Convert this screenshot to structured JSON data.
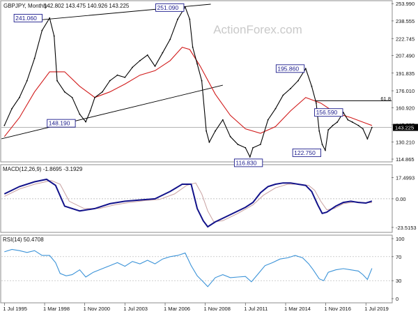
{
  "watermark": "ActionForex.com",
  "colors": {
    "price": "#000000",
    "ma": "#d11a1a",
    "macd": "#12128a",
    "signal": "#c8a0a0",
    "rsi": "#3b93d8",
    "callout_border": "#1a1a8c",
    "callout_bg": "#ffffff",
    "current_label_bg": "#000000"
  },
  "chart_data": [
    {
      "type": "line",
      "panel": "price",
      "title": "GBPJPY, Monthly",
      "ohlc_label": "142.802 143.475 140.926 143.225",
      "current_price_label": "143.225",
      "current_price": 143.225,
      "ylim": [
        113.0,
        256.0
      ],
      "y_ticks": [
        "253.990",
        "238.555",
        "222.745",
        "207.490",
        "191.835",
        "176.010",
        "160.920",
        "145.555",
        "130.210",
        "114.865"
      ],
      "y_tick_values": [
        253.99,
        238.555,
        222.745,
        207.49,
        191.835,
        176.01,
        160.92,
        145.555,
        130.21,
        114.865
      ],
      "x_labels": [
        "1 Jul 1995",
        "1 Mar 1998",
        "1 Nov 2000",
        "1 Jul 2003",
        "1 Mar 2006",
        "1 Nov 2008",
        "1 Jul 2011",
        "1 Mar 2014",
        "1 Nov 2016",
        "1 Jul 2019"
      ],
      "x_label_values": [
        1995.5,
        1998.17,
        2000.83,
        2003.5,
        2006.17,
        2008.83,
        2011.5,
        2014.17,
        2016.83,
        2019.5
      ],
      "xlim": [
        1995.3,
        2021.2
      ],
      "fib_label": "61.8",
      "fib_level": 167.1,
      "annotations": [
        {
          "text": "241.060",
          "x": 1998.1,
          "y": 241.06
        },
        {
          "text": "251.090",
          "x": 2007.6,
          "y": 251.09
        },
        {
          "text": "148.190",
          "x": 2000.3,
          "y": 148.19
        },
        {
          "text": "116.830",
          "x": 2011.7,
          "y": 116.83
        },
        {
          "text": "195.860",
          "x": 2015.5,
          "y": 195.86
        },
        {
          "text": "156.590",
          "x": 2016.0,
          "y": 156.59
        },
        {
          "text": "122.750",
          "x": 2016.6,
          "y": 122.75
        }
      ],
      "trendlines": [
        {
          "x": [
            1995.3,
            2010.0
          ],
          "y": [
            133.0,
            181.0
          ]
        },
        {
          "x": [
            1997.9,
            2009.2
          ],
          "y": [
            239.5,
            253.5
          ]
        },
        {
          "x": [
            2016.1,
            2021.2
          ],
          "y": [
            167.1,
            167.1
          ]
        }
      ],
      "series": [
        {
          "name": "",
          "role": "price",
          "x": [
            1995.5,
            1996.0,
            1996.5,
            1997.0,
            1997.5,
            1998.0,
            1998.5,
            1998.8,
            1999.0,
            1999.5,
            2000.0,
            2000.5,
            2000.9,
            2001.2,
            2001.5,
            2002.0,
            2002.5,
            2003.0,
            2003.5,
            2004.0,
            2004.5,
            2005.0,
            2005.5,
            2006.0,
            2006.5,
            2007.0,
            2007.5,
            2007.8,
            2008.0,
            2008.3,
            2008.6,
            2008.9,
            2009.1,
            2009.5,
            2010.0,
            2010.5,
            2011.0,
            2011.5,
            2011.8,
            2012.0,
            2012.5,
            2013.0,
            2013.5,
            2014.0,
            2014.5,
            2015.0,
            2015.5,
            2015.9,
            2016.2,
            2016.4,
            2016.6,
            2016.8,
            2017.0,
            2017.3,
            2017.6,
            2018.0,
            2018.3,
            2018.6,
            2019.0,
            2019.3,
            2019.6,
            2019.9
          ],
          "y": [
            145,
            160,
            170,
            185,
            205,
            230,
            241.06,
            225,
            185,
            175,
            170,
            155,
            148.19,
            158,
            170,
            175,
            185,
            190,
            188,
            197,
            203,
            208,
            198,
            210,
            222,
            240,
            251.09,
            240,
            215,
            200,
            185,
            140,
            130,
            140,
            150,
            135,
            128,
            125,
            116.83,
            125,
            128,
            150,
            160,
            172,
            178,
            185,
            195.86,
            180,
            165,
            140,
            128,
            122.75,
            141,
            145,
            148,
            156.59,
            150,
            148,
            145,
            142,
            133,
            143.225
          ]
        },
        {
          "name": "",
          "role": "moving-average",
          "x": [
            1995.5,
            1996.5,
            1997.5,
            1998.5,
            1999.5,
            2000.5,
            2001.5,
            2002.5,
            2003.5,
            2004.5,
            2005.5,
            2006.5,
            2007.3,
            2007.8,
            2008.5,
            2009.5,
            2010.5,
            2011.5,
            2012.5,
            2013.5,
            2014.5,
            2015.5,
            2016.5,
            2017.5,
            2018.5,
            2019.5,
            2019.9
          ],
          "y": [
            135,
            152,
            175,
            193,
            193,
            180,
            170,
            175,
            182,
            190,
            194,
            203,
            215,
            213,
            198,
            173,
            154,
            142,
            138,
            144,
            158,
            170,
            165,
            156,
            152,
            147,
            145
          ]
        }
      ]
    },
    {
      "type": "line",
      "panel": "macd",
      "title": "MACD(12,26,9) -1.8695 -3.1929",
      "ylim": [
        -27,
        20
      ],
      "y_ticks": [
        "17.4993",
        "0.00",
        "-23.5153"
      ],
      "y_tick_values": [
        17.4993,
        0.0,
        -23.5153
      ],
      "series": [
        {
          "name": "",
          "role": "macd",
          "x": [
            1995.5,
            1996.5,
            1997.5,
            1998.3,
            1998.9,
            1999.5,
            2000.5,
            2001.5,
            2002.5,
            2003.5,
            2004.5,
            2005.5,
            2006.5,
            2007.3,
            2007.9,
            2008.3,
            2008.7,
            2009.0,
            2009.5,
            2010.5,
            2011.5,
            2012.0,
            2012.5,
            2013.0,
            2013.5,
            2014.0,
            2014.5,
            2015.0,
            2015.5,
            2015.9,
            2016.3,
            2016.6,
            2016.9,
            2017.5,
            2018.0,
            2018.5,
            2019.0,
            2019.5,
            2019.9
          ],
          "y": [
            4,
            10,
            14,
            16,
            11,
            -6,
            -10,
            -8,
            -4,
            -2,
            -1,
            0,
            6,
            12,
            12,
            -8,
            -18,
            -23,
            -19,
            -13,
            -7,
            -3,
            5,
            10,
            12,
            13,
            13,
            12,
            11,
            6,
            -5,
            -12,
            -11,
            -6,
            -3,
            -2,
            -3,
            -3.5,
            -1.87
          ]
        },
        {
          "name": "",
          "role": "signal",
          "x": [
            1995.5,
            1996.5,
            1997.5,
            1998.6,
            1999.2,
            1999.8,
            2000.8,
            2001.8,
            2002.8,
            2003.8,
            2004.8,
            2005.8,
            2006.8,
            2007.6,
            2008.2,
            2008.6,
            2009.0,
            2009.4,
            2010.0,
            2011.0,
            2012.0,
            2012.7,
            2013.5,
            2014.3,
            2015.0,
            2015.7,
            2016.1,
            2016.5,
            2016.9,
            2017.4,
            2018.0,
            2018.8,
            2019.5,
            2019.9
          ],
          "y": [
            2,
            8,
            12,
            15,
            12,
            -2,
            -8,
            -8,
            -5,
            -3,
            -1.5,
            -0.5,
            4,
            11,
            13,
            4,
            -10,
            -19,
            -18,
            -12,
            -5,
            3,
            9,
            12,
            12,
            11,
            7,
            -2,
            -9,
            -8,
            -4,
            -2.5,
            -3.2,
            -3.19
          ]
        }
      ]
    },
    {
      "type": "line",
      "panel": "rsi",
      "title": "RSI(14) 50.4708",
      "ylim": [
        0,
        100
      ],
      "y_ticks": [
        "100",
        "70",
        "30",
        "0"
      ],
      "y_tick_values": [
        100,
        70,
        30,
        0
      ],
      "reference_lines": [
        70,
        30
      ],
      "series": [
        {
          "name": "",
          "role": "rsi",
          "x": [
            1995.5,
            1996.0,
            1996.5,
            1997.0,
            1997.5,
            1998.0,
            1998.5,
            1998.9,
            1999.2,
            1999.6,
            2000.0,
            2000.5,
            2000.9,
            2001.4,
            2002.0,
            2002.5,
            2003.0,
            2003.5,
            2004.0,
            2004.5,
            2005.0,
            2005.5,
            2006.0,
            2006.5,
            2007.0,
            2007.5,
            2007.9,
            2008.3,
            2008.7,
            2009.0,
            2009.5,
            2010.0,
            2010.5,
            2011.0,
            2011.5,
            2011.9,
            2012.3,
            2012.8,
            2013.3,
            2013.8,
            2014.3,
            2014.8,
            2015.3,
            2015.7,
            2016.0,
            2016.4,
            2016.7,
            2017.0,
            2017.5,
            2018.0,
            2018.5,
            2019.0,
            2019.3,
            2019.6,
            2019.9
          ],
          "y": [
            78,
            82,
            80,
            77,
            80,
            72,
            72,
            60,
            42,
            38,
            40,
            48,
            36,
            44,
            50,
            55,
            60,
            54,
            62,
            58,
            64,
            58,
            66,
            70,
            72,
            76,
            55,
            38,
            28,
            20,
            35,
            40,
            35,
            36,
            37,
            28,
            40,
            55,
            60,
            66,
            68,
            72,
            68,
            58,
            48,
            33,
            30,
            44,
            48,
            50,
            48,
            46,
            40,
            32,
            50.47
          ]
        }
      ]
    }
  ]
}
